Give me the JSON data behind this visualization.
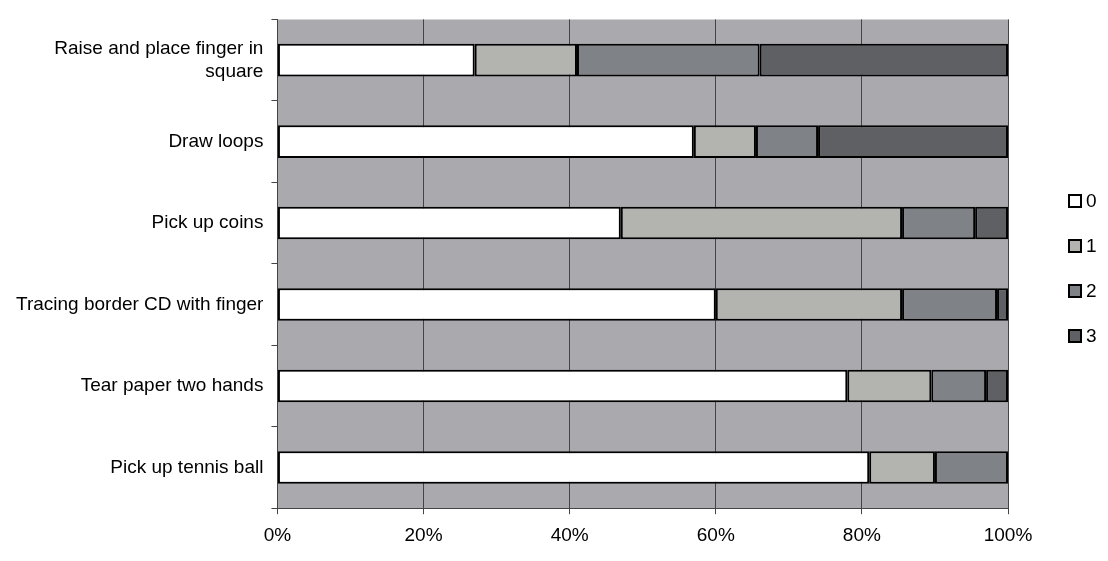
{
  "chart_data": {
    "type": "bar",
    "orientation": "horizontal",
    "stacked": true,
    "categories": [
      "Raise and place finger in square",
      "Draw loops",
      "Pick up coins",
      "Tracing border CD with finger",
      "Tear paper two hands",
      "Pick up tennis ball"
    ],
    "series": [
      {
        "name": "0",
        "color": "#ffffff",
        "values": [
          27,
          57,
          47,
          60,
          78,
          81
        ]
      },
      {
        "name": "1",
        "color": "#b3b4af",
        "values": [
          14,
          8.5,
          38.5,
          25.5,
          11.5,
          9
        ]
      },
      {
        "name": "2",
        "color": "#7f8286",
        "values": [
          25,
          8.5,
          10,
          13,
          7.5,
          10
        ]
      },
      {
        "name": "3",
        "color": "#5f6064",
        "values": [
          34,
          26,
          4.5,
          1.5,
          3,
          0
        ]
      }
    ],
    "xlim": [
      0,
      100
    ],
    "xticks": [
      {
        "value": 0,
        "label": "0%"
      },
      {
        "value": 20,
        "label": "20%"
      },
      {
        "value": 40,
        "label": "40%"
      },
      {
        "value": 60,
        "label": "60%"
      },
      {
        "value": 80,
        "label": "80%"
      },
      {
        "value": 100,
        "label": "100%"
      }
    ],
    "grid": "x",
    "legend": "right"
  }
}
